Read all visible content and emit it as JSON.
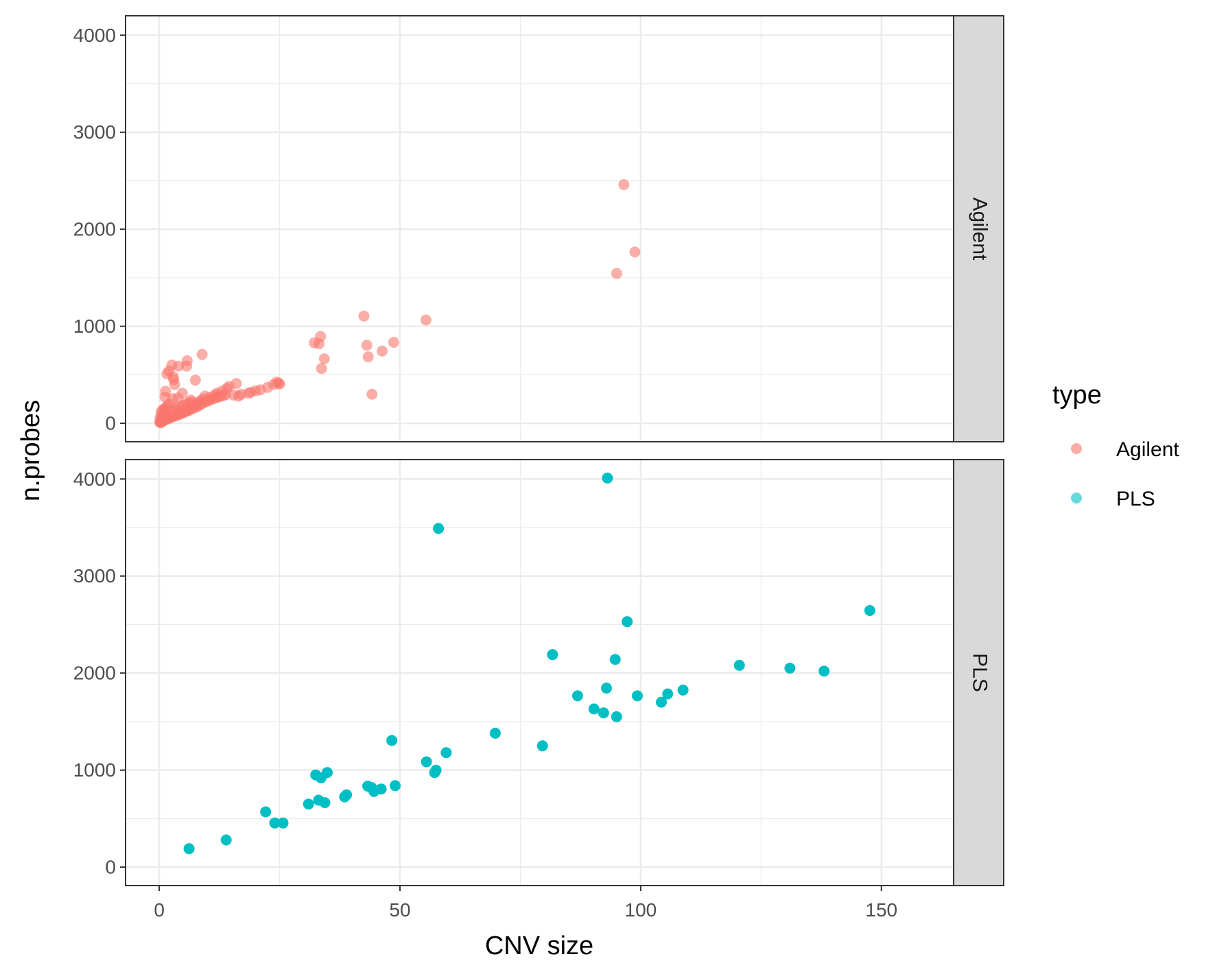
{
  "chart_data": {
    "type": "scatter",
    "xlabel": "CNV size",
    "ylabel": "n.probes",
    "xlim": [
      -7,
      165
    ],
    "ylim": [
      -190,
      4200
    ],
    "x_ticks": [
      0,
      50,
      100,
      150
    ],
    "y_ticks": [
      0,
      1000,
      2000,
      3000,
      4000
    ],
    "grid": true,
    "facet_by": "type",
    "legend": {
      "title": "type",
      "position": "right",
      "entries": [
        "Agilent",
        "PLS"
      ]
    },
    "colors": {
      "Agilent": "#F8766D",
      "PLS": "#00BFC4"
    },
    "series": [
      {
        "name": "Agilent",
        "facet": "Agilent",
        "alpha": 0.6,
        "points": [
          [
            96.5,
            2460
          ],
          [
            98.8,
            1765
          ],
          [
            95.0,
            1545
          ],
          [
            55.4,
            1065
          ],
          [
            42.5,
            1105
          ],
          [
            33.5,
            895
          ],
          [
            32.2,
            830
          ],
          [
            33.2,
            820
          ],
          [
            43.1,
            805
          ],
          [
            48.7,
            835
          ],
          [
            46.3,
            745
          ],
          [
            43.4,
            685
          ],
          [
            34.3,
            665
          ],
          [
            33.7,
            565
          ],
          [
            44.2,
            300
          ],
          [
            8.9,
            710
          ],
          [
            5.8,
            645
          ],
          [
            5.7,
            590
          ],
          [
            2.6,
            600
          ],
          [
            4.0,
            590
          ],
          [
            2.0,
            540
          ],
          [
            1.6,
            510
          ],
          [
            2.9,
            480
          ],
          [
            3.0,
            450
          ],
          [
            7.5,
            445
          ],
          [
            3.2,
            400
          ],
          [
            1.3,
            330
          ],
          [
            4.8,
            310
          ],
          [
            1.2,
            270
          ],
          [
            2.8,
            255
          ],
          [
            24.4,
            425
          ],
          [
            24.8,
            415
          ],
          [
            25.0,
            405
          ],
          [
            23.8,
            400
          ],
          [
            22.5,
            370
          ],
          [
            21.0,
            345
          ],
          [
            20.0,
            335
          ],
          [
            19.0,
            320
          ],
          [
            18.5,
            310
          ],
          [
            16.0,
            410
          ],
          [
            14.5,
            380
          ],
          [
            14.0,
            360
          ],
          [
            13.0,
            330
          ],
          [
            12.0,
            310
          ],
          [
            11.5,
            290
          ],
          [
            17.0,
            300
          ],
          [
            15.5,
            290
          ],
          [
            16.5,
            280
          ],
          [
            10.5,
            270
          ],
          [
            9.5,
            280
          ],
          [
            9.0,
            250
          ],
          [
            8.5,
            230
          ],
          [
            8.0,
            210
          ],
          [
            7.5,
            195
          ],
          [
            7.0,
            180
          ],
          [
            6.5,
            160
          ],
          [
            6.0,
            145
          ],
          [
            5.5,
            130
          ],
          [
            5.0,
            120
          ],
          [
            4.5,
            110
          ],
          [
            4.0,
            100
          ],
          [
            3.5,
            90
          ],
          [
            3.0,
            80
          ],
          [
            2.5,
            70
          ],
          [
            2.0,
            60
          ],
          [
            1.5,
            50
          ],
          [
            1.0,
            40
          ],
          [
            0.5,
            30
          ],
          [
            0.2,
            20
          ],
          [
            0.1,
            10
          ],
          [
            0.3,
            5
          ],
          [
            0.6,
            15
          ],
          [
            0.9,
            25
          ],
          [
            1.2,
            35
          ],
          [
            1.8,
            45
          ],
          [
            2.2,
            55
          ],
          [
            2.7,
            65
          ],
          [
            3.3,
            75
          ],
          [
            3.8,
            85
          ],
          [
            4.3,
            95
          ],
          [
            4.8,
            105
          ],
          [
            5.3,
            115
          ],
          [
            5.8,
            125
          ],
          [
            6.3,
            135
          ],
          [
            6.8,
            150
          ],
          [
            7.3,
            160
          ],
          [
            7.8,
            170
          ],
          [
            8.3,
            185
          ],
          [
            8.8,
            200
          ],
          [
            9.3,
            215
          ],
          [
            9.8,
            225
          ],
          [
            10.3,
            235
          ],
          [
            10.8,
            245
          ],
          [
            11.3,
            255
          ],
          [
            11.8,
            265
          ],
          [
            12.3,
            270
          ],
          [
            12.8,
            280
          ],
          [
            13.3,
            285
          ],
          [
            13.8,
            295
          ],
          [
            0.4,
            120
          ],
          [
            0.8,
            140
          ],
          [
            1.1,
            150
          ],
          [
            1.4,
            165
          ],
          [
            1.7,
            180
          ],
          [
            2.1,
            200
          ],
          [
            0.2,
            60
          ],
          [
            0.5,
            90
          ],
          [
            0.7,
            75
          ],
          [
            1.0,
            110
          ],
          [
            1.3,
            95
          ],
          [
            2.4,
            130
          ],
          [
            3.1,
            140
          ],
          [
            3.6,
            155
          ],
          [
            4.2,
            170
          ],
          [
            4.9,
            185
          ],
          [
            5.6,
            200
          ],
          [
            6.1,
            210
          ],
          [
            6.7,
            220
          ],
          [
            3.9,
            260
          ],
          [
            6.6,
            240
          ]
        ]
      },
      {
        "name": "PLS",
        "facet": "PLS",
        "alpha": 1.0,
        "points": [
          [
            93.1,
            4010
          ],
          [
            58.0,
            3490
          ],
          [
            147.6,
            2645
          ],
          [
            97.2,
            2530
          ],
          [
            81.7,
            2190
          ],
          [
            94.7,
            2140
          ],
          [
            120.5,
            2080
          ],
          [
            131.0,
            2050
          ],
          [
            138.1,
            2020
          ],
          [
            92.9,
            1845
          ],
          [
            108.8,
            1825
          ],
          [
            105.6,
            1785
          ],
          [
            86.9,
            1765
          ],
          [
            99.3,
            1765
          ],
          [
            104.3,
            1700
          ],
          [
            90.3,
            1630
          ],
          [
            92.3,
            1590
          ],
          [
            95.0,
            1550
          ],
          [
            69.8,
            1380
          ],
          [
            48.3,
            1305
          ],
          [
            79.6,
            1250
          ],
          [
            59.6,
            1180
          ],
          [
            55.5,
            1085
          ],
          [
            57.2,
            975
          ],
          [
            57.5,
            1000
          ],
          [
            34.9,
            975
          ],
          [
            32.5,
            950
          ],
          [
            33.6,
            920
          ],
          [
            49.0,
            840
          ],
          [
            43.3,
            835
          ],
          [
            44.1,
            820
          ],
          [
            46.1,
            805
          ],
          [
            44.6,
            780
          ],
          [
            38.9,
            745
          ],
          [
            38.5,
            725
          ],
          [
            33.1,
            690
          ],
          [
            34.4,
            665
          ],
          [
            31.0,
            650
          ],
          [
            22.1,
            570
          ],
          [
            24.0,
            455
          ],
          [
            25.7,
            455
          ],
          [
            13.9,
            280
          ],
          [
            6.2,
            190
          ]
        ]
      }
    ]
  }
}
